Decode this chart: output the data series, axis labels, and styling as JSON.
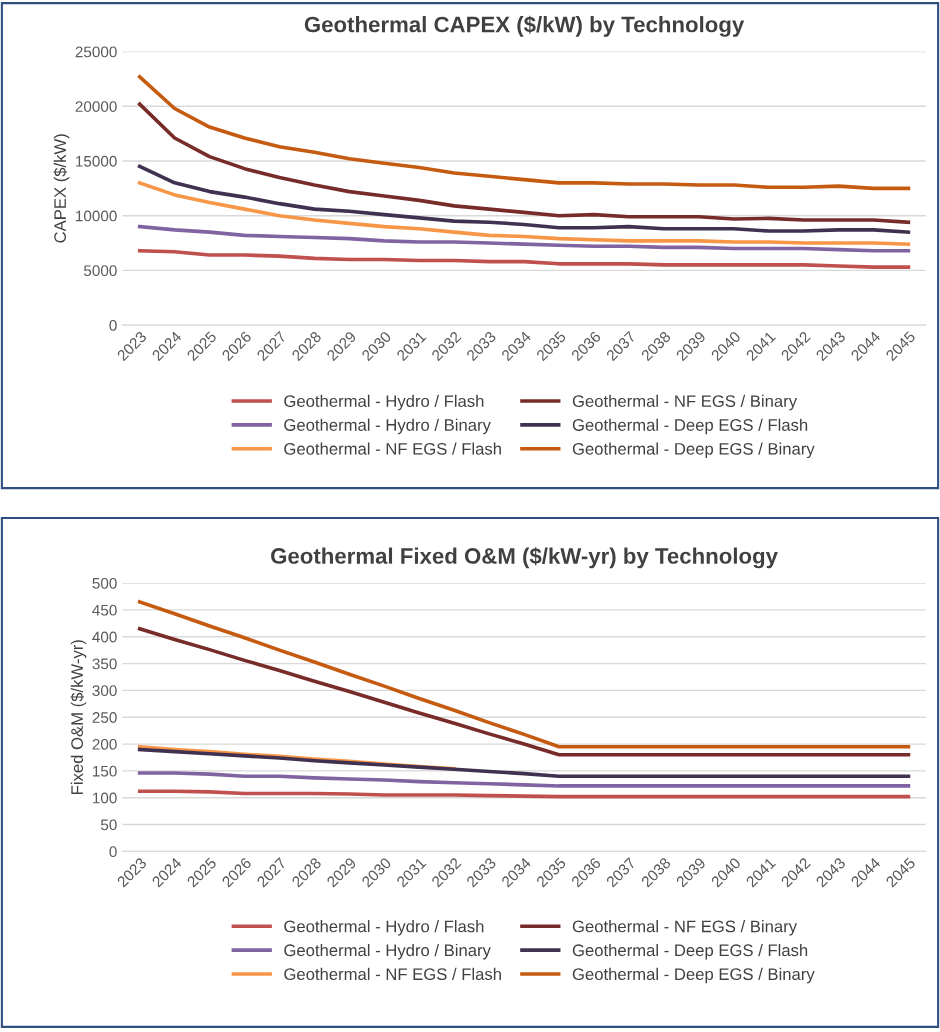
{
  "chart_data": [
    {
      "type": "line",
      "title": "Geothermal CAPEX ($/kW) by Technology",
      "ylabel": "CAPEX ($/kW)",
      "categories": [
        "2023",
        "2024",
        "2025",
        "2026",
        "2027",
        "2028",
        "2029",
        "2030",
        "2031",
        "2032",
        "2033",
        "2034",
        "2035",
        "2036",
        "2037",
        "2038",
        "2039",
        "2040",
        "2041",
        "2042",
        "2043",
        "2044",
        "2045"
      ],
      "ylim": [
        0,
        25000
      ],
      "yticks": [
        0,
        5000,
        10000,
        15000,
        20000,
        25000
      ],
      "grid": "y",
      "legend": "bottom",
      "marker": "none",
      "line_style": "solid",
      "series": [
        {
          "name": "Geothermal - Hydro / Flash",
          "color": "#c0504d",
          "values": [
            6800,
            6700,
            6400,
            6400,
            6300,
            6100,
            6000,
            6000,
            5900,
            5900,
            5800,
            5800,
            5600,
            5600,
            5600,
            5500,
            5500,
            5500,
            5500,
            5500,
            5400,
            5300,
            5300
          ]
        },
        {
          "name": "Geothermal - Hydro / Binary",
          "color": "#8064a2",
          "values": [
            9000,
            8700,
            8500,
            8200,
            8100,
            8000,
            7900,
            7700,
            7600,
            7600,
            7500,
            7400,
            7300,
            7200,
            7200,
            7100,
            7100,
            7000,
            7000,
            7000,
            6900,
            6800,
            6800
          ]
        },
        {
          "name": "Geothermal - NF EGS / Flash",
          "color": "#f79646",
          "values": [
            13000,
            11900,
            11200,
            10600,
            10000,
            9600,
            9300,
            9000,
            8800,
            8500,
            8200,
            8100,
            7900,
            7800,
            7700,
            7700,
            7700,
            7600,
            7600,
            7500,
            7500,
            7500,
            7400
          ]
        },
        {
          "name": "Geothermal - NF EGS / Binary",
          "color": "#772c2a",
          "values": [
            20200,
            17100,
            15400,
            14300,
            13500,
            12800,
            12200,
            11800,
            11400,
            10900,
            10600,
            10300,
            10000,
            10100,
            9900,
            9900,
            9900,
            9700,
            9750,
            9600,
            9600,
            9600,
            9400
          ]
        },
        {
          "name": "Geothermal - Deep EGS / Flash",
          "color": "#403151",
          "values": [
            14500,
            13000,
            12200,
            11700,
            11100,
            10600,
            10400,
            10100,
            9800,
            9500,
            9400,
            9200,
            8900,
            8900,
            9000,
            8800,
            8800,
            8800,
            8600,
            8600,
            8700,
            8700,
            8500
          ]
        },
        {
          "name": "Geothermal - Deep EGS / Binary",
          "color": "#c55a11",
          "values": [
            22700,
            19800,
            18100,
            17100,
            16300,
            15800,
            15200,
            14800,
            14400,
            13900,
            13600,
            13300,
            13000,
            13000,
            12900,
            12900,
            12800,
            12800,
            12600,
            12600,
            12700,
            12500,
            12500
          ]
        }
      ]
    },
    {
      "type": "line",
      "title": "Geothermal Fixed O&M ($/kW-yr) by Technology",
      "ylabel": "Fixed O&M ($/kW-yr)",
      "categories": [
        "2023",
        "2024",
        "2025",
        "2026",
        "2027",
        "2028",
        "2029",
        "2030",
        "2031",
        "2032",
        "2033",
        "2034",
        "2035",
        "2036",
        "2037",
        "2038",
        "2039",
        "2040",
        "2041",
        "2042",
        "2043",
        "2044",
        "2045"
      ],
      "ylim": [
        0,
        500
      ],
      "yticks": [
        0,
        50,
        100,
        150,
        200,
        250,
        300,
        350,
        400,
        450,
        500
      ],
      "grid": "y",
      "legend": "bottom",
      "marker": "none",
      "line_style": "solid",
      "series": [
        {
          "name": "Geothermal - Hydro / Flash",
          "color": "#c0504d",
          "values": [
            112,
            112,
            111,
            108,
            108,
            108,
            107,
            105,
            105,
            105,
            104,
            103,
            102,
            102,
            102,
            102,
            102,
            102,
            102,
            102,
            102,
            102,
            102
          ]
        },
        {
          "name": "Geothermal - Hydro / Binary",
          "color": "#8064a2",
          "values": [
            146,
            146,
            144,
            140,
            140,
            137,
            135,
            133,
            130,
            128,
            126,
            124,
            122,
            122,
            122,
            122,
            122,
            122,
            122,
            122,
            122,
            122,
            122
          ]
        },
        {
          "name": "Geothermal - NF EGS / Flash",
          "color": "#f79646",
          "values": [
            195,
            190,
            186,
            181,
            177,
            172,
            168,
            163,
            158,
            154,
            null,
            null,
            null,
            null,
            null,
            null,
            null,
            null,
            null,
            null,
            null,
            null,
            null
          ]
        },
        {
          "name": "Geothermal - NF EGS / Binary",
          "color": "#772c2a",
          "values": [
            415,
            395,
            376,
            356,
            337,
            317,
            298,
            278,
            258,
            239,
            219,
            200,
            180,
            180,
            180,
            180,
            180,
            180,
            180,
            180,
            180,
            180,
            180
          ]
        },
        {
          "name": "Geothermal - Deep EGS / Flash",
          "color": "#403151",
          "values": [
            190,
            186,
            182,
            178,
            174,
            169,
            165,
            161,
            157,
            153,
            149,
            145,
            140,
            140,
            140,
            140,
            140,
            140,
            140,
            140,
            140,
            140,
            140
          ]
        },
        {
          "name": "Geothermal - Deep EGS / Binary",
          "color": "#c55a11",
          "values": [
            465,
            443,
            420,
            398,
            375,
            353,
            330,
            308,
            285,
            263,
            240,
            218,
            195,
            195,
            195,
            195,
            195,
            195,
            195,
            195,
            195,
            195,
            195
          ]
        }
      ]
    }
  ]
}
